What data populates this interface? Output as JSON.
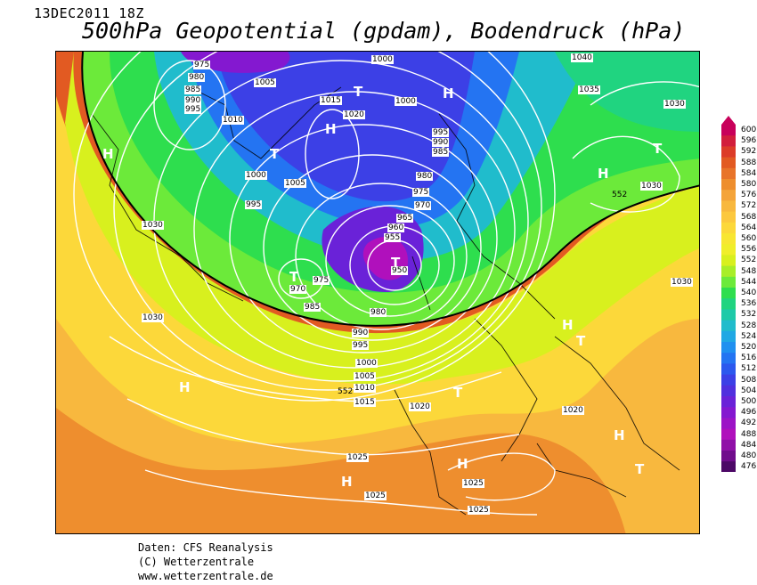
{
  "header": {
    "date": "13DEC2011 18Z",
    "title": "500hPa Geopotential (gpdam), Bodendruck (hPa)"
  },
  "legend": {
    "levels": [
      "600",
      "596",
      "592",
      "588",
      "584",
      "580",
      "576",
      "572",
      "568",
      "564",
      "560",
      "556",
      "552",
      "548",
      "544",
      "540",
      "536",
      "532",
      "528",
      "524",
      "520",
      "516",
      "512",
      "508",
      "504",
      "500",
      "496",
      "492",
      "488",
      "484",
      "480",
      "476"
    ],
    "colors": [
      "#c8005a",
      "#d21e3c",
      "#dc3c28",
      "#e25a22",
      "#e8742a",
      "#ee8e2e",
      "#f4a43a",
      "#f8b83e",
      "#fcc83e",
      "#fcd83a",
      "#f8e632",
      "#f0ee2a",
      "#d8f01e",
      "#a8ee28",
      "#6cea3a",
      "#2ede4e",
      "#20d480",
      "#1ecaa8",
      "#20bccc",
      "#20a8e4",
      "#2090f0",
      "#2474f2",
      "#2c58ee",
      "#3c40e6",
      "#5030de",
      "#6a22d8",
      "#8418d0",
      "#9c14c6",
      "#b010bc",
      "#9010a8",
      "#700c8c",
      "#4c0866"
    ]
  },
  "isobars": [
    "1040",
    "1035",
    "1030",
    "1030",
    "1030",
    "1030",
    "1030",
    "1025",
    "1025",
    "1025",
    "1025",
    "1020",
    "1020",
    "1020",
    "1015",
    "1015",
    "1010",
    "1010",
    "1005",
    "1005",
    "1005",
    "1000",
    "1000",
    "1000",
    "1000",
    "995",
    "995",
    "995",
    "995",
    "990",
    "990",
    "990",
    "985",
    "985",
    "985",
    "980",
    "980",
    "980",
    "975",
    "975",
    "975",
    "970",
    "970",
    "965",
    "960",
    "955",
    "950",
    "552",
    "552"
  ],
  "pressure_centers": [
    "H",
    "H",
    "H",
    "H",
    "H",
    "H",
    "H",
    "H",
    "H",
    "H",
    "T",
    "T",
    "T",
    "T",
    "T",
    "T",
    "T",
    "T",
    "T"
  ],
  "footer": {
    "line1": "Daten: CFS Reanalysis",
    "line2": "(C) Wetterzentrale",
    "line3": "www.wetterzentrale.de"
  }
}
